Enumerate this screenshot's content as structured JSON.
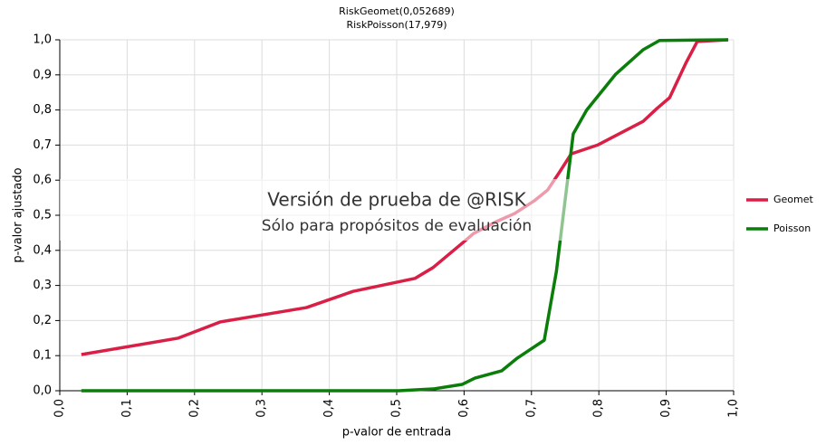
{
  "chart_data": {
    "type": "line",
    "title": "RiskGeomet(0,052689)",
    "subtitle": "RiskPoisson(17,979)",
    "x_label": "p-valor de entrada",
    "y_label": "p-valor ajustado",
    "annotations": [
      "Versión de prueba de @RISK",
      "Sólo para propósitos de evaluación"
    ],
    "xlim": [
      0,
      1
    ],
    "ylim": [
      0,
      1
    ],
    "xticks": [
      {
        "value": 0,
        "label": "0,0"
      },
      {
        "value": 0.1,
        "label": "0,1"
      },
      {
        "value": 0.2,
        "label": "0,2"
      },
      {
        "value": 0.3,
        "label": "0,3"
      },
      {
        "value": 0.4,
        "label": "0,4"
      },
      {
        "value": 0.5,
        "label": "0,5"
      },
      {
        "value": 0.6,
        "label": "0,6"
      },
      {
        "value": 0.7,
        "label": "0,7"
      },
      {
        "value": 0.8,
        "label": "0,8"
      },
      {
        "value": 0.9,
        "label": "0,9"
      },
      {
        "value": 1,
        "label": "1,0"
      }
    ],
    "yticks": [
      {
        "value": 0,
        "label": "0,0"
      },
      {
        "value": 0.1,
        "label": "0,1"
      },
      {
        "value": 0.2,
        "label": "0,2"
      },
      {
        "value": 0.3,
        "label": "0,3"
      },
      {
        "value": 0.4,
        "label": "0,4"
      },
      {
        "value": 0.5,
        "label": "0,5"
      },
      {
        "value": 0.6,
        "label": "0,6"
      },
      {
        "value": 0.7,
        "label": "0,7"
      },
      {
        "value": 0.8,
        "label": "0,8"
      },
      {
        "value": 0.9,
        "label": "0,9"
      },
      {
        "value": 1,
        "label": "1,0"
      }
    ],
    "grid": true,
    "legend": "right",
    "series": [
      {
        "name": "Geomet",
        "color": "#d91f46",
        "x": [
          0.032,
          0.176,
          0.238,
          0.366,
          0.435,
          0.527,
          0.554,
          0.597,
          0.614,
          0.648,
          0.675,
          0.704,
          0.724,
          0.742,
          0.759,
          0.798,
          0.825,
          0.866,
          0.886,
          0.905,
          0.929,
          0.946,
          0.992
        ],
        "values": [
          0.103,
          0.15,
          0.196,
          0.237,
          0.283,
          0.32,
          0.351,
          0.42,
          0.448,
          0.482,
          0.505,
          0.541,
          0.572,
          0.624,
          0.675,
          0.7,
          0.727,
          0.768,
          0.804,
          0.835,
          0.933,
          0.995,
          1.0
        ]
      },
      {
        "name": "Poisson",
        "color": "#0a7d0a",
        "x": [
          0.032,
          0.503,
          0.554,
          0.597,
          0.616,
          0.656,
          0.679,
          0.719,
          0.737,
          0.762,
          0.782,
          0.825,
          0.866,
          0.89,
          0.992
        ],
        "values": [
          0,
          0,
          0.005,
          0.018,
          0.036,
          0.057,
          0.093,
          0.144,
          0.34,
          0.732,
          0.8,
          0.902,
          0.972,
          0.998,
          1.0
        ]
      }
    ]
  }
}
